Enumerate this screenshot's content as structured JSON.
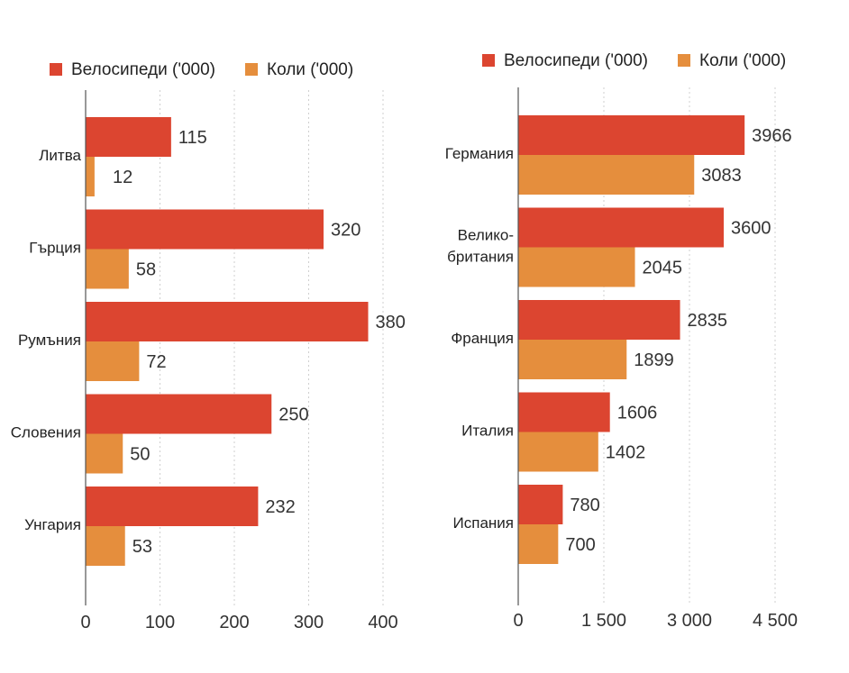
{
  "colors": {
    "bicycles": "#dc4530",
    "cars": "#e58e3d",
    "axis": "#555555",
    "grid": "#cfcfcf",
    "text": "#222222",
    "value_text": "#333333"
  },
  "chart_data": [
    {
      "type": "bar",
      "orientation": "horizontal",
      "legend": [
        "Велосипеди ('000)",
        "Коли ('000)"
      ],
      "legend_position": "top",
      "categories": [
        "Литва",
        "Гърция",
        "Румъния",
        "Словения",
        "Унгария"
      ],
      "series": [
        {
          "name": "Велосипеди ('000)",
          "values": [
            115,
            320,
            380,
            250,
            232
          ],
          "color_key": "bicycles"
        },
        {
          "name": "Коли ('000)",
          "values": [
            12,
            58,
            72,
            50,
            53
          ],
          "color_key": "cars"
        }
      ],
      "xlim": [
        0,
        400
      ],
      "xticks": [
        0,
        100,
        200,
        300,
        400
      ],
      "xtick_labels": [
        "0",
        "100",
        "200",
        "300",
        "400"
      ],
      "grid": "vertical dotted"
    },
    {
      "type": "bar",
      "orientation": "horizontal",
      "legend": [
        "Велосипеди ('000)",
        "Коли ('000)"
      ],
      "legend_position": "top",
      "categories": [
        "Германия",
        "Велико-\nбритания",
        "Франция",
        "Италия",
        "Испания"
      ],
      "series": [
        {
          "name": "Велосипеди ('000)",
          "values": [
            3966,
            3600,
            2835,
            1606,
            780
          ],
          "color_key": "bicycles"
        },
        {
          "name": "Коли ('000)",
          "values": [
            3083,
            2045,
            1899,
            1402,
            700
          ],
          "color_key": "cars"
        }
      ],
      "xlim": [
        0,
        4500
      ],
      "xticks": [
        0,
        1500,
        3000,
        4500
      ],
      "xtick_labels": [
        "0",
        "1 500",
        "3 000",
        "4 500"
      ],
      "grid": "vertical dotted"
    }
  ]
}
